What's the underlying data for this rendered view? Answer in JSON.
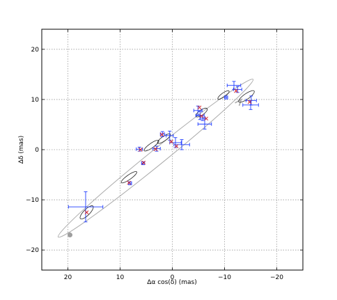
{
  "chart_data": {
    "type": "scatter",
    "title": "",
    "xlabel": "Δα cos(δ) (mas)",
    "ylabel": "Δδ (mas)",
    "xlim": [
      25,
      -25
    ],
    "ylim": [
      -24,
      24
    ],
    "x_ticks": [
      20,
      10,
      0,
      -10,
      -20
    ],
    "y_ticks": [
      -20,
      -10,
      0,
      10,
      20
    ],
    "x_tick_labels": [
      "20",
      "10",
      "0",
      "−10",
      "−20"
    ],
    "y_tick_labels": [
      "−20",
      "−10",
      "0",
      "10",
      "20"
    ],
    "grid": true,
    "orbit_start": {
      "x": 19.6,
      "y": -17.0
    },
    "model_ellipses": [
      {
        "x": 8.3,
        "y": -5.5,
        "a": 1.8,
        "b": 0.45,
        "angle": 35
      },
      {
        "x": 4.0,
        "y": 0.8,
        "a": 1.7,
        "b": 0.45,
        "angle": 35
      },
      {
        "x": 1.6,
        "y": 2.2,
        "a": 1.5,
        "b": 0.45,
        "angle": 35
      },
      {
        "x": -5.6,
        "y": 7.4,
        "a": 1.3,
        "b": 0.5,
        "angle": 35
      },
      {
        "x": -9.8,
        "y": 10.9,
        "a": 1.3,
        "b": 0.4,
        "angle": 35
      },
      {
        "x": -14.2,
        "y": 10.6,
        "a": 1.8,
        "b": 0.55,
        "angle": 35
      },
      {
        "x": 16.4,
        "y": -12.5,
        "a": 1.7,
        "b": 0.6,
        "angle": 45
      }
    ],
    "observations": [
      {
        "x": 16.6,
        "y": -11.4,
        "xerr": 3.3,
        "yerr": 3.0
      },
      {
        "x": 8.1,
        "y": -6.7,
        "xerr": 0.3,
        "yerr": 0.3
      },
      {
        "x": 5.6,
        "y": -2.7,
        "xerr": 0.3,
        "yerr": 0.3
      },
      {
        "x": 6.3,
        "y": 0.1,
        "xerr": 0.6,
        "yerr": 0.4
      },
      {
        "x": 3.0,
        "y": 0.2,
        "xerr": 0.7,
        "yerr": 0.5
      },
      {
        "x": 1.9,
        "y": 3.1,
        "xerr": 0.4,
        "yerr": 0.5
      },
      {
        "x": 0.5,
        "y": 2.8,
        "xerr": 0.7,
        "yerr": 0.9
      },
      {
        "x": -0.6,
        "y": 1.4,
        "xerr": 1.1,
        "yerr": 1.0
      },
      {
        "x": -1.8,
        "y": 1.0,
        "xerr": 1.5,
        "yerr": 1.0
      },
      {
        "x": -4.9,
        "y": 7.8,
        "xerr": 0.8,
        "yerr": 0.9
      },
      {
        "x": -5.3,
        "y": 6.8,
        "xerr": 0.8,
        "yerr": 0.8
      },
      {
        "x": -6.2,
        "y": 5.1,
        "xerr": 1.3,
        "yerr": 1.0
      },
      {
        "x": -5.8,
        "y": 6.3,
        "xerr": 0.5,
        "yerr": 0.5
      },
      {
        "x": -10.3,
        "y": 10.4,
        "xerr": 0.3,
        "yerr": 0.3
      },
      {
        "x": -11.8,
        "y": 12.8,
        "xerr": 1.3,
        "yerr": 0.8
      },
      {
        "x": -12.5,
        "y": 12.0,
        "xerr": 0.8,
        "yerr": 0.6
      },
      {
        "x": -15.1,
        "y": 9.8,
        "xerr": 1.0,
        "yerr": 0.9
      },
      {
        "x": -15.0,
        "y": 8.9,
        "xerr": 1.5,
        "yerr": 0.9
      }
    ],
    "model_points": [
      {
        "x": 16.4,
        "y": -12.5
      },
      {
        "x": 8.3,
        "y": -6.6
      },
      {
        "x": 5.5,
        "y": -2.6
      },
      {
        "x": 6.1,
        "y": 0.0
      },
      {
        "x": 3.2,
        "y": 0.1
      },
      {
        "x": 2.0,
        "y": 3.0
      },
      {
        "x": 0.2,
        "y": 1.6
      },
      {
        "x": -0.8,
        "y": 0.7
      },
      {
        "x": -5.2,
        "y": 8.4
      },
      {
        "x": -5.6,
        "y": 6.7
      },
      {
        "x": -6.5,
        "y": 6.2
      },
      {
        "x": -12.2,
        "y": 11.7
      },
      {
        "x": -14.8,
        "y": 9.5
      }
    ]
  },
  "colors": {
    "frame": "#000000",
    "grid": "#9a9a9a",
    "orbit": "#aaaaaa",
    "ellipse": "#222222",
    "errorbar": "#1f3cff",
    "model_point": "#d62728",
    "start_marker": "#9e9e9e"
  }
}
